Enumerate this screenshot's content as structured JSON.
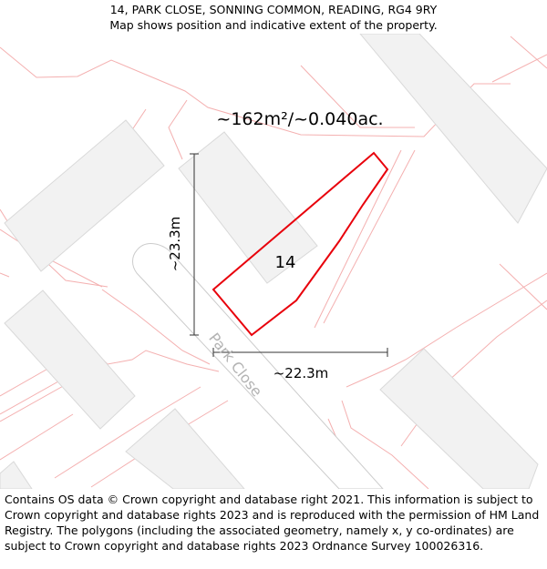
{
  "header": {
    "title": "14, PARK CLOSE, SONNING COMMON, READING, RG4 9RY",
    "subtitle": "Map shows position and indicative extent of the property."
  },
  "map": {
    "area_label": "~162m²/~0.040ac.",
    "plot_number": "14",
    "road_name": "Park Close",
    "height_label": "~23.3m",
    "width_label": "~22.3m",
    "colors": {
      "plot_outline": "#e8000b",
      "parcel_lines": "#f4b0b0",
      "buildings": "#f2f2f2",
      "road_fill": "#ffffff",
      "road_edge": "#cccccc"
    }
  },
  "footer": {
    "copyright": "Contains OS data © Crown copyright and database right 2021. This information is subject to Crown copyright and database rights 2023 and is reproduced with the permission of HM Land Registry. The polygons (including the associated geometry, namely x, y co-ordinates) are subject to Crown copyright and database rights 2023 Ordnance Survey 100026316."
  }
}
